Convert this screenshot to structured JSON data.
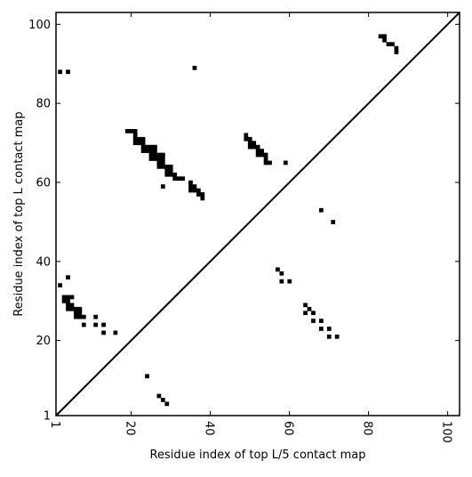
{
  "chart_data": {
    "type": "scatter",
    "title": "",
    "xlabel": "Residue index of top L/5 contact map",
    "ylabel": "Residue index of top L contact map",
    "xlim": [
      1,
      103
    ],
    "ylim": [
      1,
      103
    ],
    "x_ticks": [
      1,
      20,
      40,
      60,
      80,
      100
    ],
    "y_ticks": [
      1,
      20,
      40,
      60,
      80,
      100
    ],
    "x_tick_labels": [
      "1",
      "20",
      "40",
      "60",
      "80",
      "100"
    ],
    "y_tick_labels": [
      "1",
      "20",
      "40",
      "60",
      "80",
      "100"
    ],
    "x_tick_rotation_deg": 90,
    "grid": false,
    "marker": "square",
    "marker_color": "#000000",
    "diagonal_line": {
      "from": [
        1,
        1
      ],
      "to": [
        103,
        103
      ],
      "color": "#000000"
    },
    "series": [
      {
        "points": [
          [
            2,
            34
          ],
          [
            3,
            30
          ],
          [
            3,
            31
          ],
          [
            4,
            36
          ],
          [
            4,
            30
          ],
          [
            4,
            31
          ],
          [
            4,
            28
          ],
          [
            4,
            29
          ],
          [
            5,
            28
          ],
          [
            5,
            29
          ],
          [
            5,
            31
          ],
          [
            6,
            26
          ],
          [
            6,
            27
          ],
          [
            6,
            28
          ],
          [
            7,
            26
          ],
          [
            7,
            27
          ],
          [
            7,
            28
          ],
          [
            8,
            24
          ],
          [
            8,
            26
          ],
          [
            11,
            24
          ],
          [
            11,
            26
          ],
          [
            13,
            22
          ],
          [
            13,
            24
          ],
          [
            16,
            22
          ],
          [
            24,
            11
          ],
          [
            27,
            6
          ],
          [
            28,
            5
          ],
          [
            29,
            4
          ]
        ]
      },
      {
        "points": [
          [
            2,
            88
          ],
          [
            4,
            88
          ],
          [
            19,
            73
          ],
          [
            20,
            73
          ],
          [
            21,
            73
          ],
          [
            21,
            72
          ],
          [
            21,
            71
          ],
          [
            21,
            70
          ],
          [
            22,
            70
          ],
          [
            22,
            71
          ],
          [
            23,
            70
          ],
          [
            23,
            71
          ],
          [
            23,
            69
          ],
          [
            23,
            68
          ],
          [
            24,
            68
          ],
          [
            24,
            69
          ],
          [
            25,
            69
          ],
          [
            25,
            68
          ],
          [
            25,
            67
          ],
          [
            25,
            66
          ],
          [
            26,
            69
          ],
          [
            26,
            68
          ],
          [
            26,
            67
          ],
          [
            26,
            66
          ],
          [
            27,
            67
          ],
          [
            27,
            66
          ],
          [
            27,
            65
          ],
          [
            27,
            64
          ],
          [
            28,
            67
          ],
          [
            28,
            66
          ],
          [
            28,
            65
          ],
          [
            28,
            64
          ],
          [
            28,
            59
          ],
          [
            29,
            64
          ],
          [
            29,
            63
          ],
          [
            29,
            62
          ],
          [
            30,
            64
          ],
          [
            30,
            63
          ],
          [
            30,
            62
          ],
          [
            31,
            62
          ],
          [
            31,
            61
          ],
          [
            32,
            61
          ],
          [
            33,
            61
          ],
          [
            35,
            60
          ],
          [
            35,
            59
          ],
          [
            35,
            58
          ],
          [
            36,
            59
          ],
          [
            36,
            58
          ],
          [
            36,
            89
          ],
          [
            37,
            58
          ],
          [
            37,
            57
          ],
          [
            38,
            57
          ],
          [
            38,
            56
          ],
          [
            49,
            72
          ],
          [
            49,
            71
          ],
          [
            50,
            71
          ],
          [
            50,
            70
          ],
          [
            50,
            69
          ],
          [
            51,
            70
          ],
          [
            51,
            69
          ],
          [
            52,
            69
          ],
          [
            52,
            68
          ],
          [
            52,
            67
          ],
          [
            53,
            68
          ],
          [
            53,
            67
          ],
          [
            54,
            67
          ],
          [
            54,
            66
          ],
          [
            54,
            65
          ],
          [
            55,
            65
          ],
          [
            59,
            65
          ],
          [
            57,
            38
          ],
          [
            58,
            37
          ],
          [
            58,
            35
          ],
          [
            60,
            35
          ],
          [
            64,
            29
          ],
          [
            64,
            27
          ],
          [
            65,
            28
          ],
          [
            66,
            27
          ],
          [
            66,
            25
          ],
          [
            68,
            25
          ],
          [
            68,
            23
          ],
          [
            68,
            53
          ],
          [
            70,
            23
          ],
          [
            70,
            21
          ],
          [
            71,
            50
          ],
          [
            72,
            21
          ],
          [
            83,
            97
          ],
          [
            84,
            97
          ],
          [
            84,
            96
          ],
          [
            85,
            95
          ],
          [
            86,
            95
          ],
          [
            87,
            94
          ],
          [
            87,
            93
          ]
        ]
      }
    ]
  }
}
